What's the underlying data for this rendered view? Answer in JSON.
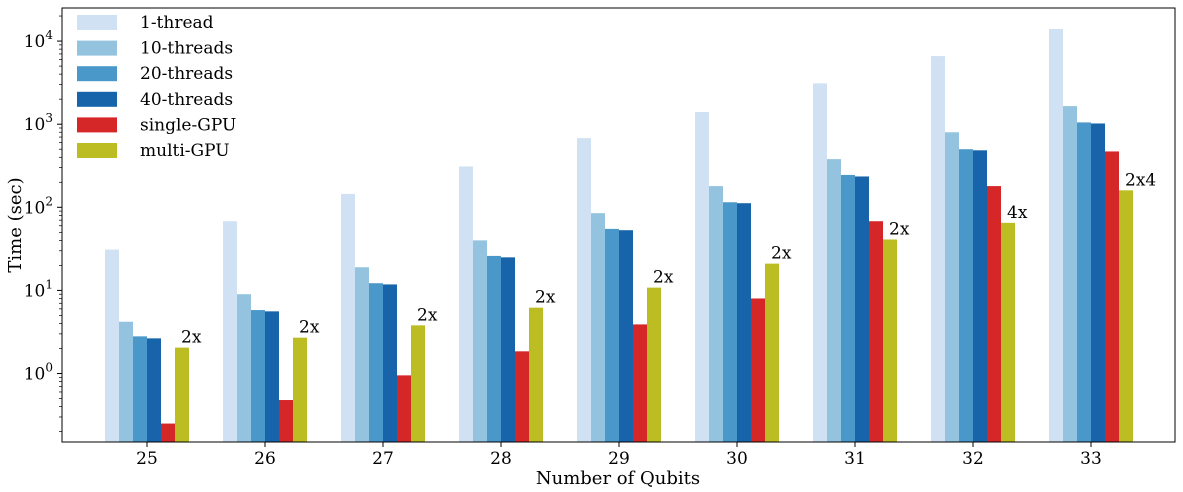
{
  "chart_data": {
    "type": "bar",
    "xlabel": "Number of Qubits",
    "ylabel": "Time (sec)",
    "yscale": "log",
    "ylim": [
      0.15,
      25000
    ],
    "yticks": [
      {
        "value": 1,
        "base": "10",
        "exp": "0"
      },
      {
        "value": 10,
        "base": "10",
        "exp": "1"
      },
      {
        "value": 100,
        "base": "10",
        "exp": "2"
      },
      {
        "value": 1000,
        "base": "10",
        "exp": "3"
      },
      {
        "value": 10000,
        "base": "10",
        "exp": "4"
      }
    ],
    "grid": false,
    "legend_position": "top-left",
    "categories": [
      "25",
      "26",
      "27",
      "28",
      "29",
      "30",
      "31",
      "32",
      "33"
    ],
    "series": [
      {
        "name": "1-thread",
        "color": "#cfe1f2",
        "values": [
          31,
          68,
          145,
          310,
          680,
          1400,
          3100,
          6600,
          14000
        ]
      },
      {
        "name": "10-threads",
        "color": "#93c3df",
        "values": [
          4.2,
          9.0,
          19,
          40,
          85,
          180,
          380,
          800,
          1650
        ]
      },
      {
        "name": "20-threads",
        "color": "#4a97c9",
        "values": [
          2.8,
          5.8,
          12.2,
          26,
          55,
          115,
          245,
          500,
          1050
        ]
      },
      {
        "name": "40-threads",
        "color": "#1764ab",
        "values": [
          2.65,
          5.6,
          11.8,
          25,
          53,
          112,
          235,
          485,
          1020
        ]
      },
      {
        "name": "single-GPU",
        "color": "#d62728",
        "values": [
          0.25,
          0.48,
          0.95,
          1.85,
          3.9,
          8.0,
          68,
          180,
          470
        ]
      },
      {
        "name": "multi-GPU",
        "color": "#bcbd22",
        "values": [
          2.05,
          2.7,
          3.8,
          6.2,
          10.8,
          21,
          41,
          65,
          160
        ]
      }
    ],
    "annotations": [
      {
        "category": "25",
        "text": "2x"
      },
      {
        "category": "26",
        "text": "2x"
      },
      {
        "category": "27",
        "text": "2x"
      },
      {
        "category": "28",
        "text": "2x"
      },
      {
        "category": "29",
        "text": "2x"
      },
      {
        "category": "30",
        "text": "2x"
      },
      {
        "category": "31",
        "text": "2x"
      },
      {
        "category": "32",
        "text": "4x"
      },
      {
        "category": "33",
        "text": "2x4"
      }
    ]
  }
}
